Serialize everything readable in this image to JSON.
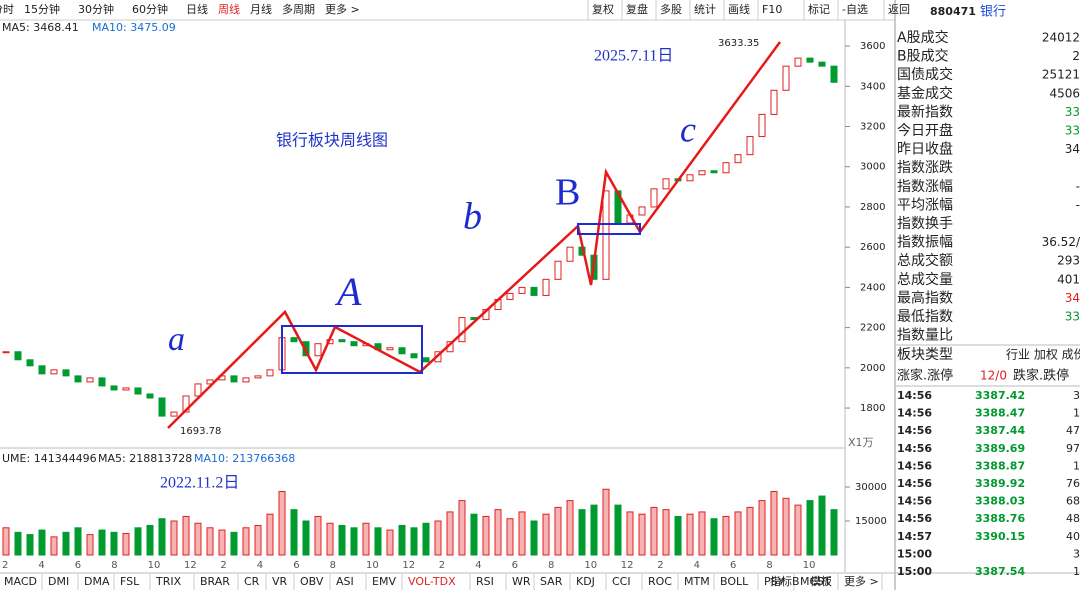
{
  "toolbar": {
    "periods": [
      "分时",
      "15分钟",
      "30分钟",
      "60分钟",
      "日线",
      "周线",
      "月线",
      "多周期",
      "更多 >"
    ],
    "active": 5,
    "tools": [
      "复权",
      "复盘",
      "多股",
      "统计",
      "画线",
      "F10",
      "标记",
      "-自选",
      "返回"
    ]
  },
  "ma_header": {
    "ma5": "MA5: 3468.41",
    "ma10": "MA10: 3475.09"
  },
  "annotations": {
    "high_date": "2025.7.11日",
    "title": "银行板块周线图",
    "low_date": "2022.11.2日",
    "high": "3633.35",
    "low": "1693.78",
    "wave_a": "a",
    "wave_A": "A",
    "wave_b": "b",
    "wave_B": "B",
    "wave_c": "c",
    "unit": "X1万"
  },
  "chart_data": {
    "type": "candlestick",
    "up_color": "#e02020",
    "down_color": "#009a2e",
    "closes": [
      2080,
      2040,
      2010,
      1970,
      1990,
      1960,
      1930,
      1950,
      1910,
      1890,
      1900,
      1870,
      1850,
      1760,
      1780,
      1860,
      1920,
      1940,
      1960,
      1930,
      1950,
      1960,
      1990,
      2150,
      2130,
      2060,
      2120,
      2140,
      2130,
      2110,
      2120,
      2090,
      2100,
      2070,
      2050,
      2030,
      2080,
      2130,
      2250,
      2240,
      2290,
      2340,
      2370,
      2400,
      2360,
      2440,
      2530,
      2600,
      2560,
      2440,
      2880,
      2720,
      2760,
      2800,
      2890,
      2940,
      2930,
      2960,
      2980,
      2970,
      3020,
      3060,
      3150,
      3260,
      3380,
      3500,
      3540,
      3520,
      3500,
      3420
    ],
    "ylim": [
      1666,
      3655
    ],
    "yticks": [
      1800,
      2000,
      2200,
      2400,
      2600,
      2800,
      3000,
      3200,
      3400,
      3600
    ],
    "x_labels": [
      "2",
      "4",
      "6",
      "8",
      "10",
      "12",
      "2",
      "4",
      "6",
      "8",
      "10",
      "12",
      "2",
      "4",
      "6",
      "8",
      "10",
      "12",
      "2",
      "4",
      "6",
      "8",
      "10"
    ],
    "volume": {
      "header": {
        "vol": "UME: 141344496",
        "ma5": "MA5: 218813728",
        "ma10": "MA10: 213766368"
      },
      "values": [
        12000,
        10000,
        9000,
        11000,
        8000,
        10000,
        12000,
        9000,
        11000,
        10000,
        9500,
        12000,
        13000,
        16000,
        15000,
        17000,
        14000,
        12000,
        11000,
        10000,
        12000,
        13000,
        18000,
        28000,
        20000,
        15000,
        17000,
        14000,
        13000,
        12000,
        14000,
        12000,
        11000,
        13000,
        12000,
        14000,
        15000,
        19000,
        24000,
        18000,
        17000,
        20000,
        16000,
        19000,
        15000,
        18000,
        21000,
        24000,
        20000,
        22000,
        29000,
        22000,
        19000,
        18000,
        21000,
        20000,
        17000,
        18000,
        19000,
        16000,
        17000,
        19000,
        21000,
        24000,
        28000,
        25000,
        22000,
        24000,
        26000,
        20000
      ],
      "ylim": [
        0,
        39700
      ],
      "yticks": [
        15000,
        30000
      ]
    }
  },
  "side_panel": {
    "code": "880471",
    "name": "银行",
    "rows": [
      {
        "label": "A股成交",
        "value": "24012"
      },
      {
        "label": "B股成交",
        "value": "2"
      },
      {
        "label": "国债成交",
        "value": "25121"
      },
      {
        "label": "基金成交",
        "value": "4506"
      },
      {
        "label": "最新指数",
        "value": "33",
        "color": "#009a2e"
      },
      {
        "label": "今日开盘",
        "value": "33",
        "color": "#009a2e"
      },
      {
        "label": "昨日收盘",
        "value": "34"
      },
      {
        "label": "指数涨跌"
      },
      {
        "label": "指数涨幅",
        "value": "-"
      },
      {
        "label": "平均涨幅",
        "value": "-"
      },
      {
        "label": "指数换手"
      },
      {
        "label": "指数振幅",
        "value": "36.52/"
      },
      {
        "label": "总成交额",
        "value": "293"
      },
      {
        "label": "总成交量",
        "value": "401"
      },
      {
        "label": "最高指数",
        "value": "34",
        "color": "#e02020"
      },
      {
        "label": "最低指数",
        "value": "33",
        "color": "#009a2e"
      },
      {
        "label": "指数量比"
      }
    ],
    "sector_type": {
      "label": "板块类型",
      "value": "行业 加权 成份"
    },
    "breadth": {
      "up_label": "涨家.涨停",
      "up_value": "12/0",
      "down_label": "跌家.跌停"
    },
    "trades": [
      [
        "14:56",
        "3387.42",
        "3"
      ],
      [
        "14:56",
        "3388.47",
        "1"
      ],
      [
        "14:56",
        "3387.44",
        "47"
      ],
      [
        "14:56",
        "3389.69",
        "97"
      ],
      [
        "14:56",
        "3388.87",
        "1"
      ],
      [
        "14:56",
        "3389.92",
        "76"
      ],
      [
        "14:56",
        "3388.03",
        "68"
      ],
      [
        "14:56",
        "3388.76",
        "48"
      ],
      [
        "14:57",
        "3390.15",
        "40"
      ],
      [
        "15:00",
        "3"
      ],
      [
        "15:00",
        "3387.54",
        "1"
      ]
    ]
  },
  "bottom_tabs": {
    "tabs": [
      "MACD",
      "DMI",
      "DMA",
      "FSL",
      "TRIX",
      "BRAR",
      "CR",
      "VR",
      "OBV",
      "ASI",
      "EMV",
      "VOL-TDX",
      "RSI",
      "WR",
      "SAR",
      "KDJ",
      "CCI",
      "ROC",
      "MTM",
      "BOLL",
      "PSY",
      "MCST",
      "更多 >"
    ],
    "active": 11,
    "right": [
      "指标B",
      "模板"
    ]
  }
}
